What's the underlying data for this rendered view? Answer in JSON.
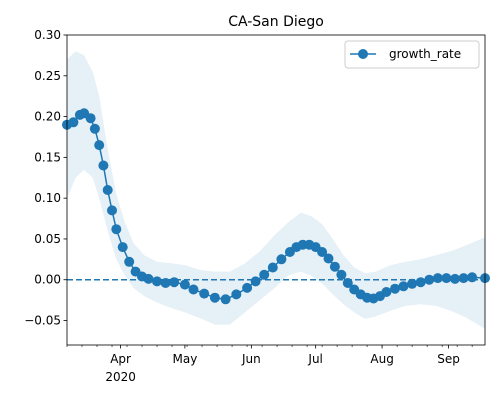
{
  "chart_data": {
    "type": "line",
    "title": "CA-San Diego",
    "xlabel": "",
    "ylabel": "",
    "x_start": "2020-03-07",
    "x_end": "2020-09-18",
    "x_ticks": [
      {
        "date": "2020-04-01",
        "label": "Apr",
        "sublabel": "2020"
      },
      {
        "date": "2020-05-01",
        "label": "May",
        "sublabel": ""
      },
      {
        "date": "2020-06-01",
        "label": "Jun",
        "sublabel": ""
      },
      {
        "date": "2020-07-01",
        "label": "Jul",
        "sublabel": ""
      },
      {
        "date": "2020-08-01",
        "label": "Aug",
        "sublabel": ""
      },
      {
        "date": "2020-09-01",
        "label": "Sep",
        "sublabel": ""
      }
    ],
    "ylim": [
      -0.08,
      0.3
    ],
    "y_ticks": [
      -0.05,
      0.0,
      0.05,
      0.1,
      0.15,
      0.2,
      0.25,
      0.3
    ],
    "y_tick_labels": [
      "−0.05",
      "0.00",
      "0.05",
      "0.10",
      "0.15",
      "0.20",
      "0.25",
      "0.30"
    ],
    "reference_line": 0.0,
    "grid": false,
    "legend": {
      "position": "top-right",
      "label": "growth_rate"
    },
    "series": [
      {
        "name": "growth_rate",
        "color": "#1f77b4",
        "band_color": "#1f77b4",
        "points": [
          [
            "2020-03-07",
            0.19
          ],
          [
            "2020-03-10",
            0.193
          ],
          [
            "2020-03-13",
            0.202
          ],
          [
            "2020-03-15",
            0.204
          ],
          [
            "2020-03-18",
            0.198
          ],
          [
            "2020-03-20",
            0.185
          ],
          [
            "2020-03-22",
            0.165
          ],
          [
            "2020-03-24",
            0.14
          ],
          [
            "2020-03-26",
            0.11
          ],
          [
            "2020-03-28",
            0.085
          ],
          [
            "2020-03-30",
            0.062
          ],
          [
            "2020-04-02",
            0.04
          ],
          [
            "2020-04-05",
            0.022
          ],
          [
            "2020-04-08",
            0.01
          ],
          [
            "2020-04-11",
            0.004
          ],
          [
            "2020-04-14",
            0.001
          ],
          [
            "2020-04-18",
            -0.002
          ],
          [
            "2020-04-22",
            -0.004
          ],
          [
            "2020-04-26",
            -0.003
          ],
          [
            "2020-05-01",
            -0.006
          ],
          [
            "2020-05-05",
            -0.012
          ],
          [
            "2020-05-10",
            -0.017
          ],
          [
            "2020-05-15",
            -0.022
          ],
          [
            "2020-05-20",
            -0.024
          ],
          [
            "2020-05-25",
            -0.018
          ],
          [
            "2020-05-30",
            -0.01
          ],
          [
            "2020-06-03",
            -0.002
          ],
          [
            "2020-06-07",
            0.006
          ],
          [
            "2020-06-11",
            0.015
          ],
          [
            "2020-06-15",
            0.025
          ],
          [
            "2020-06-19",
            0.034
          ],
          [
            "2020-06-22",
            0.04
          ],
          [
            "2020-06-25",
            0.043
          ],
          [
            "2020-06-28",
            0.043
          ],
          [
            "2020-07-01",
            0.04
          ],
          [
            "2020-07-04",
            0.034
          ],
          [
            "2020-07-07",
            0.026
          ],
          [
            "2020-07-10",
            0.016
          ],
          [
            "2020-07-13",
            0.006
          ],
          [
            "2020-07-16",
            -0.004
          ],
          [
            "2020-07-19",
            -0.012
          ],
          [
            "2020-07-22",
            -0.018
          ],
          [
            "2020-07-25",
            -0.022
          ],
          [
            "2020-07-28",
            -0.023
          ],
          [
            "2020-07-31",
            -0.02
          ],
          [
            "2020-08-03",
            -0.015
          ],
          [
            "2020-08-07",
            -0.011
          ],
          [
            "2020-08-11",
            -0.008
          ],
          [
            "2020-08-15",
            -0.005
          ],
          [
            "2020-08-19",
            -0.003
          ],
          [
            "2020-08-23",
            0.0
          ],
          [
            "2020-08-27",
            0.002
          ],
          [
            "2020-08-31",
            0.002
          ],
          [
            "2020-09-04",
            0.001
          ],
          [
            "2020-09-08",
            0.002
          ],
          [
            "2020-09-12",
            0.003
          ],
          [
            "2020-09-18",
            0.002
          ]
        ],
        "band": [
          [
            "2020-03-07",
            0.1,
            0.27
          ],
          [
            "2020-03-11",
            0.125,
            0.28
          ],
          [
            "2020-03-15",
            0.135,
            0.275
          ],
          [
            "2020-03-19",
            0.125,
            0.255
          ],
          [
            "2020-03-22",
            0.1,
            0.225
          ],
          [
            "2020-03-26",
            0.06,
            0.16
          ],
          [
            "2020-03-30",
            0.025,
            0.105
          ],
          [
            "2020-04-03",
            0.005,
            0.07
          ],
          [
            "2020-04-07",
            -0.01,
            0.045
          ],
          [
            "2020-04-12",
            -0.02,
            0.03
          ],
          [
            "2020-04-18",
            -0.028,
            0.022
          ],
          [
            "2020-04-25",
            -0.035,
            0.02
          ],
          [
            "2020-05-01",
            -0.04,
            0.018
          ],
          [
            "2020-05-08",
            -0.047,
            0.012
          ],
          [
            "2020-05-15",
            -0.055,
            0.01
          ],
          [
            "2020-05-22",
            -0.055,
            0.01
          ],
          [
            "2020-05-29",
            -0.04,
            0.02
          ],
          [
            "2020-06-05",
            -0.025,
            0.035
          ],
          [
            "2020-06-12",
            -0.01,
            0.055
          ],
          [
            "2020-06-18",
            0.005,
            0.07
          ],
          [
            "2020-06-24",
            0.01,
            0.082
          ],
          [
            "2020-06-29",
            0.005,
            0.078
          ],
          [
            "2020-07-04",
            -0.005,
            0.068
          ],
          [
            "2020-07-09",
            -0.018,
            0.05
          ],
          [
            "2020-07-14",
            -0.03,
            0.03
          ],
          [
            "2020-07-19",
            -0.04,
            0.015
          ],
          [
            "2020-07-24",
            -0.048,
            0.008
          ],
          [
            "2020-07-29",
            -0.045,
            0.01
          ],
          [
            "2020-08-05",
            -0.038,
            0.018
          ],
          [
            "2020-08-12",
            -0.032,
            0.022
          ],
          [
            "2020-08-19",
            -0.03,
            0.025
          ],
          [
            "2020-08-26",
            -0.032,
            0.03
          ],
          [
            "2020-09-02",
            -0.038,
            0.035
          ],
          [
            "2020-09-09",
            -0.046,
            0.042
          ],
          [
            "2020-09-18",
            -0.06,
            0.052
          ]
        ]
      }
    ]
  }
}
